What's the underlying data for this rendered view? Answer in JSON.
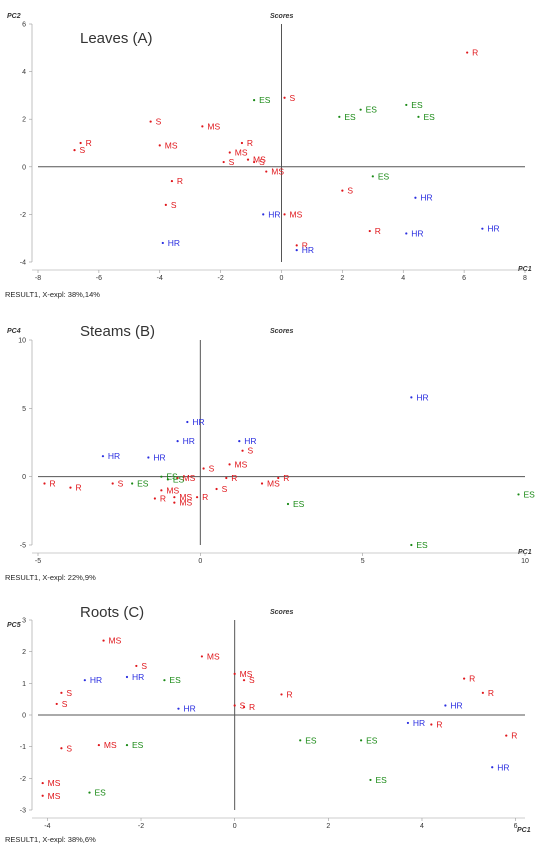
{
  "colors": {
    "S": "#e0161b",
    "R": "#e0161b",
    "MS": "#e0161b",
    "ES": "#1a8a16",
    "HR": "#2a2ee0",
    "axis": "#555555"
  },
  "chart_data": [
    {
      "type": "scatter",
      "title": "Leaves (A)",
      "header": "Scores",
      "xlabel": "PC1",
      "ylabel": "PC2",
      "footer": "RESULT1, X-expl: 38%,14%",
      "xlim": [
        -8,
        8
      ],
      "ylim": [
        -4,
        6
      ],
      "xticks": [
        -8,
        -6,
        -4,
        -2,
        0,
        2,
        4,
        6,
        8
      ],
      "yticks": [
        -4,
        -2,
        0,
        2,
        4,
        6
      ],
      "points": [
        {
          "x": 6.1,
          "y": 4.8,
          "label": "R"
        },
        {
          "x": -0.9,
          "y": 2.8,
          "label": "ES"
        },
        {
          "x": 0.1,
          "y": 2.9,
          "label": "S"
        },
        {
          "x": 1.9,
          "y": 2.1,
          "label": "ES"
        },
        {
          "x": 2.6,
          "y": 2.4,
          "label": "ES"
        },
        {
          "x": 4.1,
          "y": 2.6,
          "label": "ES"
        },
        {
          "x": 4.5,
          "y": 2.1,
          "label": "ES"
        },
        {
          "x": -4.3,
          "y": 1.9,
          "label": "S"
        },
        {
          "x": -2.6,
          "y": 1.7,
          "label": "MS"
        },
        {
          "x": -6.6,
          "y": 1.0,
          "label": "R"
        },
        {
          "x": -6.8,
          "y": 0.7,
          "label": "S"
        },
        {
          "x": -4.0,
          "y": 0.9,
          "label": "MS"
        },
        {
          "x": -1.3,
          "y": 1.0,
          "label": "R"
        },
        {
          "x": -1.7,
          "y": 0.6,
          "label": "MS"
        },
        {
          "x": -1.1,
          "y": 0.3,
          "label": "MS"
        },
        {
          "x": -1.9,
          "y": 0.2,
          "label": "S"
        },
        {
          "x": -0.9,
          "y": 0.2,
          "label": "S"
        },
        {
          "x": -0.5,
          "y": -0.2,
          "label": "MS"
        },
        {
          "x": -3.6,
          "y": -0.6,
          "label": "R"
        },
        {
          "x": 3.0,
          "y": -0.4,
          "label": "ES"
        },
        {
          "x": 2.0,
          "y": -1.0,
          "label": "S"
        },
        {
          "x": 4.4,
          "y": -1.3,
          "label": "HR"
        },
        {
          "x": -3.8,
          "y": -1.6,
          "label": "S"
        },
        {
          "x": -0.6,
          "y": -2.0,
          "label": "HR"
        },
        {
          "x": 0.1,
          "y": -2.0,
          "label": "MS"
        },
        {
          "x": 2.9,
          "y": -2.7,
          "label": "R"
        },
        {
          "x": 4.1,
          "y": -2.8,
          "label": "HR"
        },
        {
          "x": 6.6,
          "y": -2.6,
          "label": "HR"
        },
        {
          "x": 0.5,
          "y": -3.3,
          "label": "R"
        },
        {
          "x": 0.5,
          "y": -3.5,
          "label": "HR"
        },
        {
          "x": -3.9,
          "y": -3.2,
          "label": "HR"
        }
      ]
    },
    {
      "type": "scatter",
      "title": "Steams (B)",
      "header": "Scores",
      "xlabel": "PC1",
      "ylabel": "PC4",
      "footer": "RESULT1, X-expl: 22%,9%",
      "xlim": [
        -5,
        10
      ],
      "ylim": [
        -5,
        10
      ],
      "xticks": [
        -5,
        0,
        5,
        10
      ],
      "yticks": [
        -5,
        0,
        5,
        10
      ],
      "points": [
        {
          "x": 6.5,
          "y": 5.8,
          "label": "HR"
        },
        {
          "x": -0.4,
          "y": 4.0,
          "label": "HR"
        },
        {
          "x": -0.7,
          "y": 2.6,
          "label": "HR"
        },
        {
          "x": 1.2,
          "y": 2.6,
          "label": "HR"
        },
        {
          "x": -3.0,
          "y": 1.5,
          "label": "HR"
        },
        {
          "x": -1.6,
          "y": 1.4,
          "label": "HR"
        },
        {
          "x": 1.3,
          "y": 1.9,
          "label": "S"
        },
        {
          "x": 0.9,
          "y": 0.9,
          "label": "MS"
        },
        {
          "x": 0.1,
          "y": 0.6,
          "label": "S"
        },
        {
          "x": -1.2,
          "y": 0.0,
          "label": "ES"
        },
        {
          "x": -0.7,
          "y": -0.1,
          "label": "MS"
        },
        {
          "x": -1.0,
          "y": -0.2,
          "label": "ES"
        },
        {
          "x": 0.8,
          "y": -0.1,
          "label": "R"
        },
        {
          "x": 2.4,
          "y": -0.1,
          "label": "R"
        },
        {
          "x": 1.9,
          "y": -0.5,
          "label": "MS"
        },
        {
          "x": -4.8,
          "y": -0.5,
          "label": "R"
        },
        {
          "x": -4.0,
          "y": -0.8,
          "label": "R"
        },
        {
          "x": -2.7,
          "y": -0.5,
          "label": "S"
        },
        {
          "x": -2.1,
          "y": -0.5,
          "label": "ES"
        },
        {
          "x": -1.2,
          "y": -1.0,
          "label": "MS"
        },
        {
          "x": 0.5,
          "y": -0.9,
          "label": "S"
        },
        {
          "x": -0.8,
          "y": -1.5,
          "label": "MS"
        },
        {
          "x": -1.4,
          "y": -1.6,
          "label": "R"
        },
        {
          "x": -0.1,
          "y": -1.5,
          "label": "R"
        },
        {
          "x": -0.8,
          "y": -1.9,
          "label": "MS"
        },
        {
          "x": 2.7,
          "y": -2.0,
          "label": "ES"
        },
        {
          "x": 9.8,
          "y": -1.3,
          "label": "ES"
        },
        {
          "x": 6.5,
          "y": -5.0,
          "label": "ES"
        }
      ]
    },
    {
      "type": "scatter",
      "title": "Roots (C)",
      "header": "Scores",
      "xlabel": "PC1",
      "ylabel": "PC5",
      "footer": "RESULT1, X-expl: 38%,6%",
      "xlim": [
        -4.2,
        6.2
      ],
      "ylim": [
        -3,
        3
      ],
      "xticks": [
        -4,
        -2,
        0,
        2,
        4,
        6
      ],
      "yticks": [
        -3,
        -2,
        -1,
        0,
        1,
        2,
        3
      ],
      "points": [
        {
          "x": -2.8,
          "y": 2.35,
          "label": "MS"
        },
        {
          "x": -0.7,
          "y": 1.85,
          "label": "MS"
        },
        {
          "x": -2.1,
          "y": 1.55,
          "label": "S"
        },
        {
          "x": -2.3,
          "y": 1.2,
          "label": "HR"
        },
        {
          "x": -1.5,
          "y": 1.1,
          "label": "ES"
        },
        {
          "x": 0.0,
          "y": 1.3,
          "label": "MS"
        },
        {
          "x": 0.2,
          "y": 1.1,
          "label": "S"
        },
        {
          "x": -3.2,
          "y": 1.1,
          "label": "HR"
        },
        {
          "x": -3.7,
          "y": 0.7,
          "label": "S"
        },
        {
          "x": -3.8,
          "y": 0.35,
          "label": "S"
        },
        {
          "x": 1.0,
          "y": 0.65,
          "label": "R"
        },
        {
          "x": 4.9,
          "y": 1.15,
          "label": "R"
        },
        {
          "x": 5.3,
          "y": 0.7,
          "label": "R"
        },
        {
          "x": 4.5,
          "y": 0.3,
          "label": "HR"
        },
        {
          "x": -1.2,
          "y": 0.2,
          "label": "HR"
        },
        {
          "x": 0.0,
          "y": 0.3,
          "label": "S"
        },
        {
          "x": 0.2,
          "y": 0.25,
          "label": "R"
        },
        {
          "x": 3.7,
          "y": -0.25,
          "label": "HR"
        },
        {
          "x": 4.2,
          "y": -0.3,
          "label": "R"
        },
        {
          "x": 5.8,
          "y": -0.65,
          "label": "R"
        },
        {
          "x": 1.4,
          "y": -0.8,
          "label": "ES"
        },
        {
          "x": 2.7,
          "y": -0.8,
          "label": "ES"
        },
        {
          "x": -2.9,
          "y": -0.95,
          "label": "MS"
        },
        {
          "x": -2.3,
          "y": -0.95,
          "label": "ES"
        },
        {
          "x": -3.7,
          "y": -1.05,
          "label": "S"
        },
        {
          "x": 5.5,
          "y": -1.65,
          "label": "HR"
        },
        {
          "x": 2.9,
          "y": -2.05,
          "label": "ES"
        },
        {
          "x": -4.1,
          "y": -2.15,
          "label": "MS"
        },
        {
          "x": -4.1,
          "y": -2.55,
          "label": "MS"
        },
        {
          "x": -3.1,
          "y": -2.45,
          "label": "ES"
        }
      ]
    }
  ]
}
